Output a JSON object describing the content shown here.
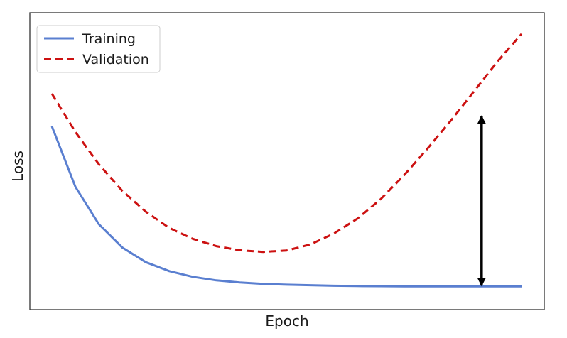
{
  "chart_data": {
    "type": "line",
    "xlabel": "Epoch",
    "ylabel": "Loss",
    "xlim": [
      0,
      100
    ],
    "ylim": [
      0,
      100
    ],
    "ticks_visible": false,
    "grid": false,
    "legend": {
      "position": "top-left"
    },
    "series": [
      {
        "name": "Training",
        "color": "#5a7fd0",
        "style": "solid",
        "x": [
          0,
          5,
          10,
          15,
          20,
          25,
          30,
          35,
          40,
          45,
          50,
          55,
          60,
          65,
          70,
          75,
          80,
          85,
          90,
          95,
          100
        ],
        "y": [
          65.5,
          43.2,
          29.4,
          20.8,
          15.4,
          12.1,
          10.0,
          8.7,
          7.9,
          7.4,
          7.1,
          6.9,
          6.7,
          6.6,
          6.55,
          6.5,
          6.5,
          6.5,
          6.5,
          6.5,
          6.5
        ]
      },
      {
        "name": "Validation",
        "color": "#cc1111",
        "style": "dashed",
        "x": [
          0,
          5,
          10,
          15,
          20,
          25,
          30,
          35,
          40,
          45,
          50,
          55,
          60,
          65,
          70,
          75,
          80,
          85,
          90,
          95,
          100
        ],
        "y": [
          77.5,
          63.4,
          51.5,
          41.7,
          34.0,
          28.0,
          24.0,
          21.3,
          19.8,
          19.2,
          19.7,
          21.9,
          25.9,
          31.4,
          38.6,
          47.5,
          57.3,
          67.7,
          78.6,
          89.6,
          99.5
        ]
      }
    ],
    "annotations": [
      {
        "type": "double-arrow",
        "x": 91.5,
        "y_from": 6.5,
        "y_to": 69.5,
        "color": "#000000"
      }
    ]
  }
}
